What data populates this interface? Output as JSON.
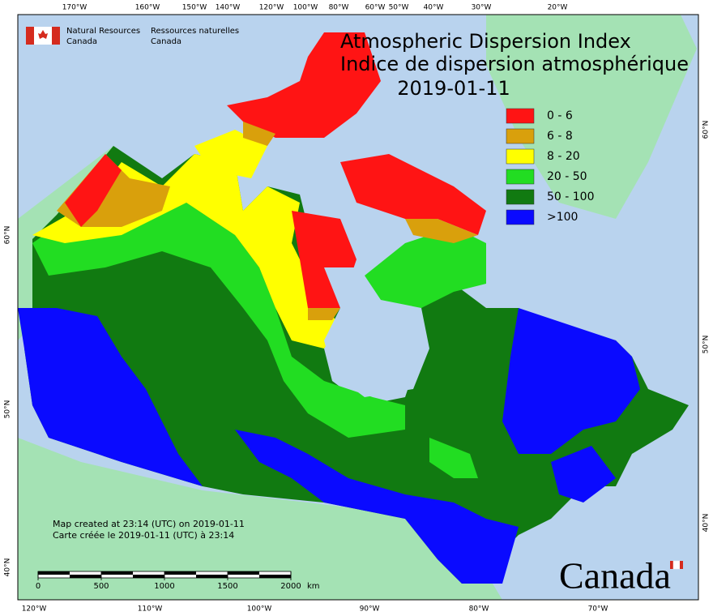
{
  "header": {
    "org_en": [
      "Natural Resources",
      "Canada"
    ],
    "org_fr": [
      "Ressources naturelles",
      "Canada"
    ]
  },
  "title": [
    "Atmospheric Dispersion Index",
    "Indice de dispersion atmosphérique"
  ],
  "date": "2019-01-11",
  "legend": [
    {
      "label": "0 - 6",
      "color": "#ff1414"
    },
    {
      "label": "6 - 8",
      "color": "#d9a00c"
    },
    {
      "label": "8 - 20",
      "color": "#ffff00"
    },
    {
      "label": "20 - 50",
      "color": "#22dd22"
    },
    {
      "label": "50 - 100",
      "color": "#117a11"
    },
    {
      "label": ">100",
      "color": "#0a0aff"
    }
  ],
  "graticule": {
    "top": [
      "170°W",
      "160°W",
      "150°W",
      "140°W",
      "120°W",
      "100°W",
      "80°W",
      "60°W",
      "50°W",
      "40°W",
      "30°W",
      "20°W"
    ],
    "bottom": [
      "120°W",
      "110°W",
      "100°W",
      "90°W",
      "80°W",
      "70°W"
    ],
    "left": [
      "60°N",
      "50°N",
      "40°N"
    ],
    "right": [
      "60°N",
      "50°N",
      "40°N"
    ]
  },
  "scale_bar": {
    "ticks": [
      0,
      500,
      1000,
      1500,
      2000
    ],
    "unit": "km"
  },
  "notes": [
    "Map created at 23:14 (UTC) on 2019-01-11",
    "Carte créée le 2019-01-11 (UTC) à 23:14"
  ],
  "wordmark": "Canada"
}
